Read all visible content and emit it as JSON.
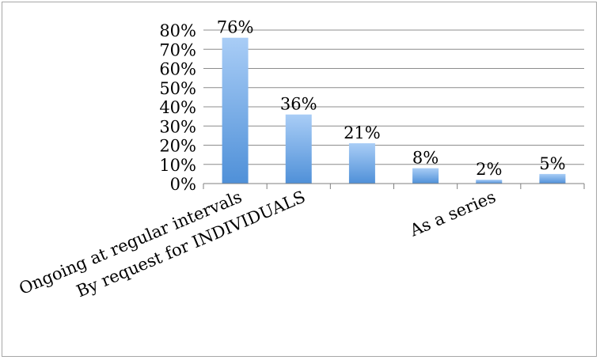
{
  "chart_data": {
    "type": "bar",
    "categories": [
      "Ongoing at regular intervals",
      "By request for INDIVIDUALS",
      "",
      "",
      "As a series",
      ""
    ],
    "series": [
      {
        "values": [
          76,
          36,
          21,
          8,
          2,
          5
        ]
      }
    ],
    "data_labels": [
      "76%",
      "36%",
      "21%",
      "8%",
      "2%",
      "5%"
    ],
    "y_ticks": [
      "0%",
      "10%",
      "20%",
      "30%",
      "40%",
      "50%",
      "60%",
      "70%",
      "80%"
    ],
    "ylim": [
      0,
      80
    ],
    "grid": true,
    "legend": "none",
    "colors": {
      "bar_top": "#a9cdf6",
      "bar_bottom": "#4f90d8",
      "gridline": "#8c8c8c",
      "axis": "#7f7f7f"
    }
  }
}
